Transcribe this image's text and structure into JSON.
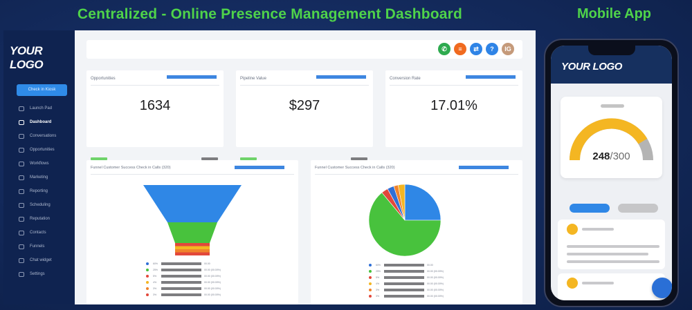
{
  "headline": "Centralized - Online Presence Management Dashboard",
  "mobile_headline": "Mobile App",
  "desktop": {
    "logo": "YOUR LOGO",
    "checkin_button": "Check in Kiosk",
    "nav": [
      {
        "label": "Launch Pad",
        "active": false
      },
      {
        "label": "Dashboard",
        "active": true
      },
      {
        "label": "Conversations",
        "active": false
      },
      {
        "label": "Opportunities",
        "active": false
      },
      {
        "label": "Workflows",
        "active": false
      },
      {
        "label": "Marketing",
        "active": false
      },
      {
        "label": "Reporting",
        "active": false
      },
      {
        "label": "Scheduling",
        "active": false
      },
      {
        "label": "Reputation",
        "active": false
      },
      {
        "label": "Contacts",
        "active": false
      },
      {
        "label": "Funnels",
        "active": false
      },
      {
        "label": "Chat widget",
        "active": false
      },
      {
        "label": "Settings",
        "active": false
      }
    ],
    "top_icons": [
      {
        "name": "phone-icon",
        "glyph": "✆",
        "color": "#2eaa4f"
      },
      {
        "name": "list-icon",
        "glyph": "≡",
        "color": "#f06a1f"
      },
      {
        "name": "swap-icon",
        "glyph": "⇄",
        "color": "#2f84e6"
      },
      {
        "name": "help-icon",
        "glyph": "?",
        "color": "#2f84e6"
      },
      {
        "name": "user-avatar-icon",
        "glyph": "IG",
        "color": "#c59a7a"
      }
    ],
    "metrics": [
      {
        "title": "Opportunities",
        "value": "1634"
      },
      {
        "title": "Pipeline Value",
        "value": "$297"
      },
      {
        "title": "Conversion Rate",
        "value": "17.01%"
      }
    ],
    "funnel_card": {
      "title": "Funnel    Customer Success Check in Calls (320)"
    },
    "pie_card": {
      "title": "Funnel    Customer Success Check in Calls (320)"
    },
    "legend_colors": [
      "#2f6fd6",
      "#48c23d",
      "#e2483b",
      "#f4b622",
      "#f0832c",
      "#e2483b"
    ],
    "legend_pcts": [
      "60%",
      "25%",
      "5%",
      "4%",
      "3%",
      "3%"
    ],
    "legend_vals": [
      "00.00",
      "00.00 (00.00%)",
      "00.00 (00.00%)",
      "00.00 (00.00%)",
      "00.00 (00.00%)",
      "00.00 (00.00%)"
    ]
  },
  "funnel_data": [
    {
      "label": "Stage 1",
      "share": 0.6,
      "color": "#2f87e6"
    },
    {
      "label": "Stage 2",
      "share": 0.25,
      "color": "#48c23d"
    },
    {
      "label": "Stage 3",
      "share": 0.05,
      "color": "#e2483b"
    },
    {
      "label": "Stage 4",
      "share": 0.04,
      "color": "#f4b622"
    },
    {
      "label": "Stage 5",
      "share": 0.03,
      "color": "#f0832c"
    },
    {
      "label": "Stage 6",
      "share": 0.03,
      "color": "#e2483b"
    }
  ],
  "chart_data": {
    "type": "pie",
    "slices": [
      {
        "value": 0.25,
        "color": "#2f87e6"
      },
      {
        "value": 0.64,
        "color": "#48c23d"
      },
      {
        "value": 0.03,
        "color": "#e2483b"
      },
      {
        "value": 0.03,
        "color": "#2f6fd6"
      },
      {
        "value": 0.02,
        "color": "#f0832c"
      },
      {
        "value": 0.03,
        "color": "#f4b622"
      }
    ]
  },
  "mobile": {
    "logo": "YOUR LOGO",
    "gauge": {
      "value": "248",
      "total": "/300",
      "fraction": 0.827
    },
    "colors": {
      "gauge_fill": "#f4b622",
      "gauge_track": "#b4b4b4",
      "pill_primary": "#2f87e6",
      "pill_secondary": "#c6c6c8"
    }
  }
}
